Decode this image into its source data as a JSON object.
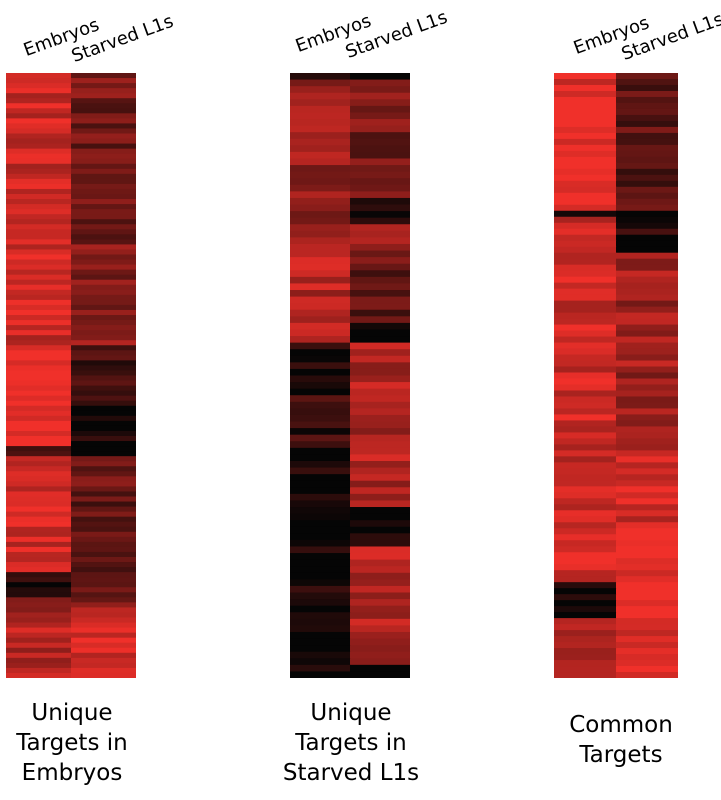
{
  "chart_data": [
    {
      "type": "heatmap",
      "columns": [
        "Embryos",
        "Starved L1s"
      ],
      "caption": [
        "Unique",
        "Targets in",
        "Embryos"
      ],
      "colors": {
        "high": "#f0302a",
        "low": "#050505"
      },
      "segments": [
        [
          {
            "rows": 34,
            "levels": [
              0.84,
              0.46
            ]
          },
          {
            "rows": 20,
            "levels": [
              0.86,
              0.56
            ]
          },
          {
            "rows": 11,
            "levels": [
              0.98,
              0.22
            ]
          },
          {
            "rows": 9,
            "levels": [
              1.0,
              0.06
            ]
          },
          {
            "rows": 2,
            "levels": [
              0.18,
              0.04
            ]
          },
          {
            "rows": 23,
            "levels": [
              0.88,
              0.4
            ]
          },
          {
            "rows": 5,
            "levels": [
              0.06,
              0.52
            ]
          },
          {
            "rows": 3,
            "levels": [
              0.7,
              0.6
            ]
          },
          {
            "rows": 13,
            "levels": [
              0.74,
              0.9
            ]
          }
        ],
        [
          {
            "rows": 1,
            "levels": [
              0.0,
              0.0
            ]
          },
          {
            "rows": 18,
            "levels": [
              0.62,
              0.48
            ]
          },
          {
            "rows": 4,
            "levels": [
              0.44,
              0.16
            ]
          },
          {
            "rows": 3,
            "levels": [
              0.78,
              0.82
            ]
          },
          {
            "rows": 12,
            "levels": [
              0.76,
              0.4
            ]
          },
          {
            "rows": 3,
            "levels": [
              0.8,
              0.08
            ]
          },
          {
            "rows": 8,
            "levels": [
              0.08,
              0.7
            ]
          },
          {
            "rows": 7,
            "levels": [
              0.18,
              0.62
            ]
          },
          {
            "rows": 10,
            "levels": [
              0.05,
              0.72
            ]
          },
          {
            "rows": 6,
            "levels": [
              0.03,
              0.04
            ]
          },
          {
            "rows": 18,
            "levels": [
              0.06,
              0.74
            ]
          },
          {
            "rows": 2,
            "levels": [
              0.0,
              0.0
            ]
          }
        ],
        [
          {
            "rows": 23,
            "levels": [
              0.97,
              0.34
            ]
          },
          {
            "rows": 1,
            "levels": [
              0.05,
              0.0
            ]
          },
          {
            "rows": 6,
            "levels": [
              0.88,
              0.12
            ]
          },
          {
            "rows": 33,
            "levels": [
              0.86,
              0.64
            ]
          },
          {
            "rows": 13,
            "levels": [
              0.86,
              0.88
            ]
          },
          {
            "rows": 9,
            "levels": [
              0.92,
              0.97
            ]
          },
          {
            "rows": 6,
            "levels": [
              0.06,
              0.96
            ]
          },
          {
            "rows": 10,
            "levels": [
              0.78,
              0.96
            ]
          }
        ]
      ]
    }
  ],
  "panels": [
    {
      "col_embryos": "Embryos",
      "col_starved": "Starved L1s",
      "caption": [
        "Unique",
        "Targets in",
        "Embryos"
      ]
    },
    {
      "col_embryos": "Embryos",
      "col_starved": "Starved L1s",
      "caption": [
        "Unique",
        "Targets in",
        "Starved L1s"
      ]
    },
    {
      "col_embryos": "Embryos",
      "col_starved": "Starved L1s",
      "caption": [
        "Common",
        "Targets"
      ]
    }
  ]
}
